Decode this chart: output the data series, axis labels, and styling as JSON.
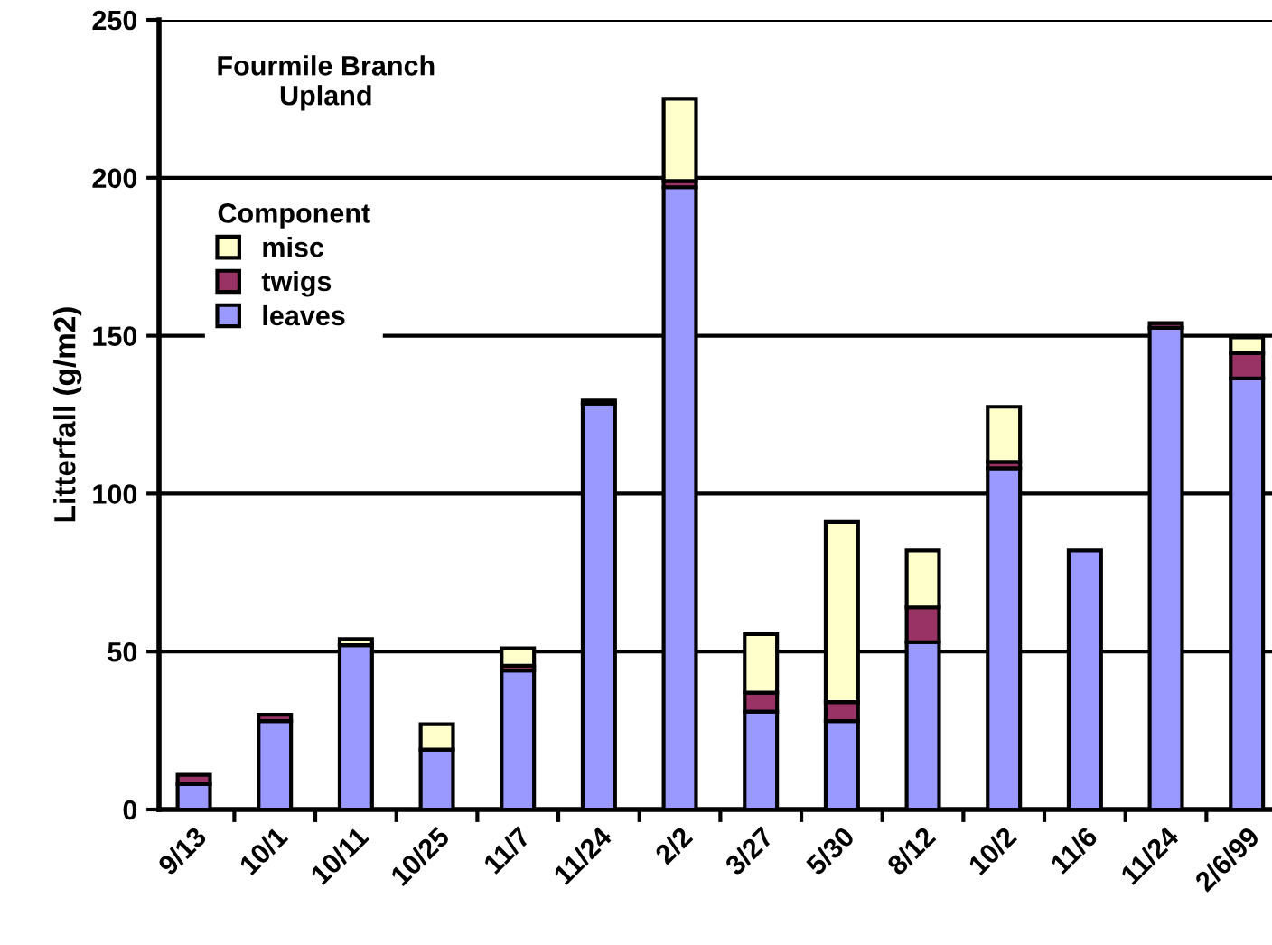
{
  "chart_data": {
    "type": "bar",
    "stacked": true,
    "title": "Fourmile Branch\nUpland",
    "ylabel": "Litterfall (g/m2)",
    "legend_title": "Component",
    "legend": "top left",
    "grid": "y",
    "categories": [
      "9/13",
      "10/1",
      "10/11",
      "10/25",
      "11/7",
      "11/24",
      "2/2",
      "3/27",
      "5/30",
      "8/12",
      "10/2",
      "11/6",
      "11/24",
      "2/6/99"
    ],
    "series": [
      {
        "name": "leaves",
        "color": "#9999ff",
        "values": [
          8,
          28,
          52,
          19,
          44,
          128.5,
          197,
          31,
          28,
          53,
          108,
          82,
          152.5,
          136.5
        ]
      },
      {
        "name": "twigs",
        "color": "#993366",
        "values": [
          3,
          2,
          null,
          null,
          1.5,
          1,
          2,
          6,
          6,
          11,
          2,
          null,
          1.5,
          8
        ]
      },
      {
        "name": "misc",
        "color": "#ffffcc",
        "values": [
          null,
          null,
          2,
          8,
          5.5,
          null,
          26,
          18.5,
          57,
          18,
          17.5,
          null,
          null,
          5
        ]
      }
    ],
    "ylim": [
      0,
      250
    ],
    "yticks": [
      0,
      50,
      100,
      150,
      200,
      250
    ]
  }
}
